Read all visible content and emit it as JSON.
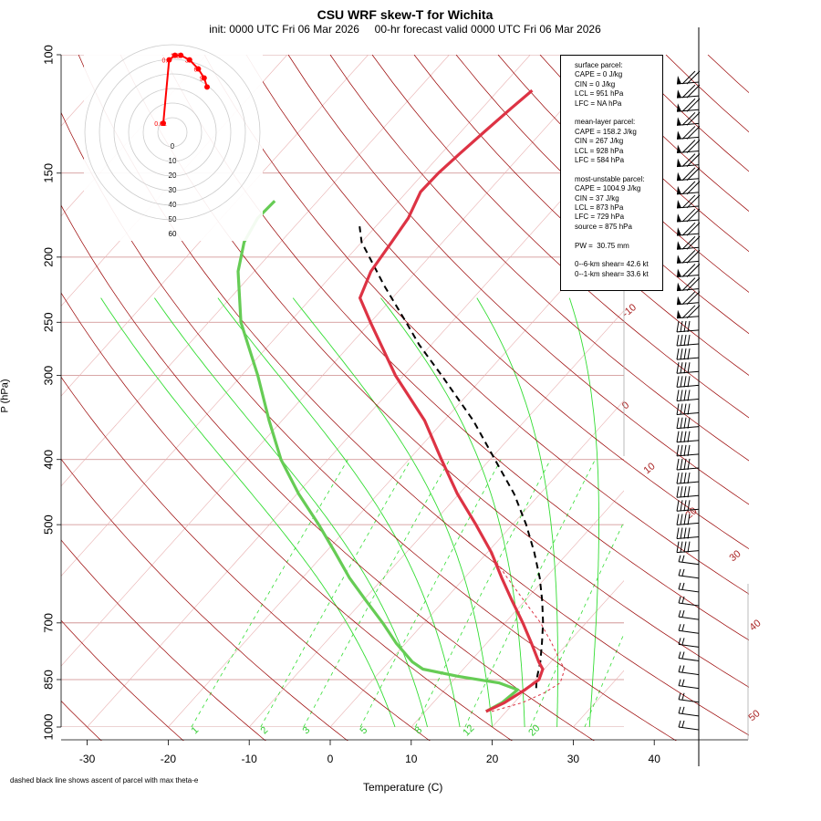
{
  "header": {
    "title": "CSU WRF skew-T for Wichita",
    "subtitle": "init: 0000 UTC Fri 06 Mar 2026     00-hr forecast valid 0000 UTC Fri 06 Mar 2026"
  },
  "footnote": "dashed black line shows ascent of parcel with max theta-e",
  "info_box": {
    "surface": [
      "surface parcel:",
      "CAPE = 0 J/kg",
      "CIN = 0 J/kg",
      "LCL = 951 hPa",
      "LFC = NA hPa"
    ],
    "mean_layer": [
      "mean-layer parcel:",
      "CAPE = 158.2 J/kg",
      "CIN = 267 J/kg",
      "LCL = 928 hPa",
      "LFC = 584 hPa"
    ],
    "most_unstable": [
      "most-unstable parcel:",
      "CAPE = 1004.9 J/kg",
      "CIN = 37 J/kg",
      "LCL = 873 hPa",
      "LFC = 729 hPa",
      "source = 875 hPa"
    ],
    "pw": "PW =  30.75 mm",
    "shear": [
      "0--6-km shear= 42.6 kt",
      "0--1-km shear= 33.6 kt"
    ]
  },
  "colors": {
    "temperature": "#dd3344",
    "dewpoint": "#66cc55",
    "parcel": "#000000",
    "isotherm": "#990000",
    "mixing_ratio": "#33dd33",
    "isobar": "#cc8888",
    "hodograph": "#ff0000"
  },
  "chart_data": {
    "type": "skew-t",
    "xlabel": "Temperature (C)",
    "ylabel": "P (hPa)",
    "x_ticks": [
      -30,
      -20,
      -10,
      0,
      10,
      20,
      30,
      40
    ],
    "pressure_levels": [
      100,
      150,
      200,
      250,
      300,
      400,
      500,
      700,
      850,
      1000
    ],
    "isotherm_labels": [
      -10,
      0,
      10,
      20,
      30,
      40,
      50
    ],
    "mixing_ratio_labels": [
      1,
      2,
      3,
      5,
      8,
      12,
      20
    ],
    "mixing_ratio_lines": [
      1,
      2,
      3,
      5,
      8,
      12,
      20,
      30
    ],
    "temperature_profile": {
      "pressure": [
        948,
        920,
        880,
        850,
        820,
        800,
        750,
        700,
        650,
        600,
        550,
        500,
        450,
        400,
        350,
        300,
        270,
        250,
        230,
        210,
        190,
        175,
        160,
        150,
        140,
        130,
        120,
        113
      ],
      "temp": [
        17.5,
        18.8,
        19.9,
        20.5,
        19.8,
        18.5,
        15.5,
        12.2,
        8.5,
        4.6,
        0.5,
        -4.5,
        -10.2,
        -16.0,
        -22.4,
        -31.0,
        -36.2,
        -40.0,
        -44.0,
        -45.6,
        -46.3,
        -46.9,
        -48.3,
        -48.2,
        -47.7,
        -47.1,
        -46.4,
        -45.8
      ]
    },
    "dewpoint_profile": {
      "pressure": [
        948,
        920,
        880,
        860,
        840,
        820,
        800,
        750,
        700,
        650,
        600,
        550,
        500,
        450,
        400,
        350,
        300,
        250,
        210,
        190,
        175,
        165
      ],
      "dewpoint": [
        17.5,
        18.5,
        19.0,
        16.0,
        10.0,
        5.0,
        2.9,
        -1.2,
        -5.1,
        -9.5,
        -14.2,
        -18.8,
        -23.9,
        -29.8,
        -35.8,
        -41.6,
        -48.0,
        -56.0,
        -62.0,
        -64.5,
        -65.5,
        -65.3
      ]
    },
    "parcel_profile": {
      "pressure": [
        875,
        850,
        800,
        750,
        700,
        650,
        600,
        550,
        500,
        450,
        400,
        350,
        300,
        270,
        250,
        220,
        190,
        180
      ],
      "temp": [
        21.1,
        20.2,
        18.7,
        16.8,
        14.7,
        12.2,
        9.3,
        5.8,
        1.7,
        -3.2,
        -9.4,
        -16.4,
        -25.3,
        -31.5,
        -35.6,
        -42.5,
        -50.0,
        -52.0
      ]
    },
    "surface_parcel_dashed": {
      "pressure": [
        948,
        920,
        890,
        860,
        820,
        800,
        750,
        700,
        650,
        600,
        550
      ],
      "temp": [
        18.2,
        21.0,
        22.6,
        23.5,
        22.5,
        21.2,
        18.0,
        14.4,
        10.0,
        5.3,
        0.3
      ]
    },
    "wind_barb_count": 48,
    "hodograph": {
      "ring_labels": [
        0,
        10,
        20,
        30,
        40,
        50,
        60
      ],
      "points": [
        {
          "label": "0.01",
          "u": 0,
          "v": 2
        },
        {
          "label": "0.5",
          "u": 2,
          "v": 16
        },
        {
          "label": "1",
          "u": 4,
          "v": 17
        },
        {
          "label": "2",
          "u": 6,
          "v": 17
        },
        {
          "label": "3",
          "u": 9,
          "v": 16
        },
        {
          "label": "6",
          "u": 12,
          "v": 14
        },
        {
          "label": "9",
          "u": 14,
          "v": 12
        },
        {
          "label": "",
          "u": 15,
          "v": 10
        }
      ]
    }
  }
}
